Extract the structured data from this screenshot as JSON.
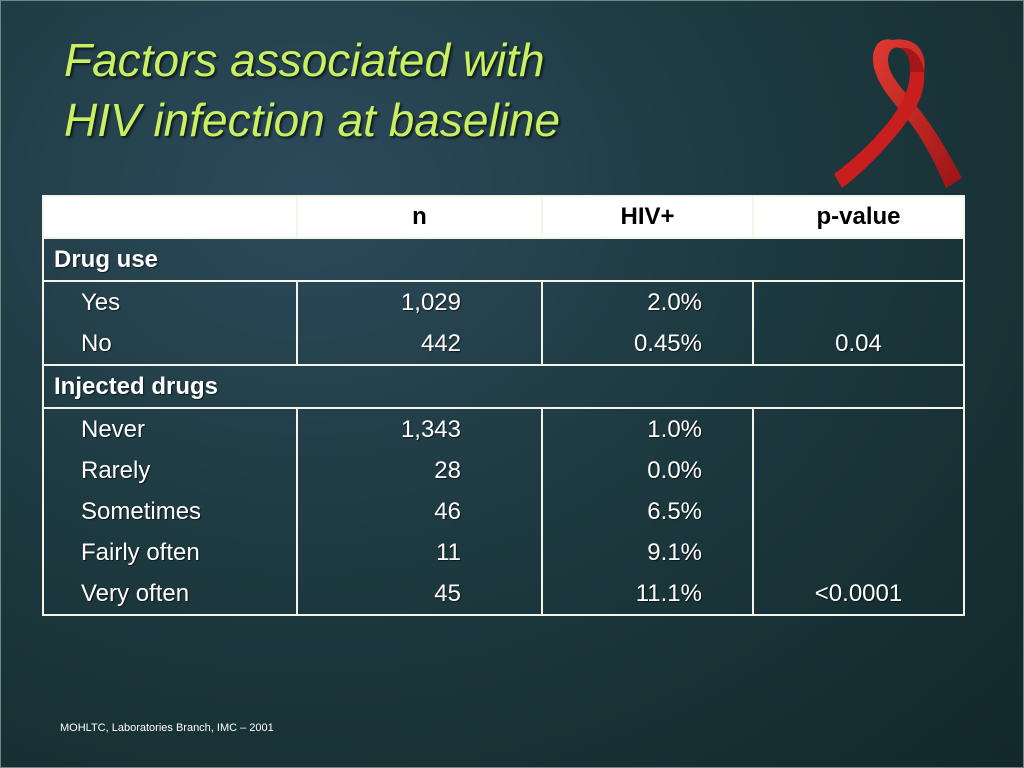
{
  "slide": {
    "title_line1": "Factors associated with",
    "title_line2": "HIV infection at baseline",
    "footer": "MOHLTC, Laboratories Branch, IMC – 2001",
    "colors": {
      "title": "#c8f060",
      "ribbon": "#c81e1e",
      "background": "#1d3a40"
    },
    "icon": "red-awareness-ribbon-icon"
  },
  "table": {
    "headers": [
      "",
      "n",
      "HIV+",
      "p-value"
    ],
    "groups": [
      {
        "label": "Drug use",
        "rows": [
          {
            "label": "Yes",
            "n": "1,029",
            "hiv": "2.0%",
            "p": ""
          },
          {
            "label": "No",
            "n": "442",
            "hiv": "0.45%",
            "p": "0.04"
          }
        ]
      },
      {
        "label": "Injected drugs",
        "rows": [
          {
            "label": "Never",
            "n": "1,343",
            "hiv": "1.0%",
            "p": ""
          },
          {
            "label": "Rarely",
            "n": "28",
            "hiv": "0.0%",
            "p": ""
          },
          {
            "label": "Sometimes",
            "n": "46",
            "hiv": "6.5%",
            "p": ""
          },
          {
            "label": "Fairly often",
            "n": "11",
            "hiv": "9.1%",
            "p": ""
          },
          {
            "label": "Very often",
            "n": "45",
            "hiv": "11.1%",
            "p": "<0.0001"
          }
        ]
      }
    ]
  }
}
